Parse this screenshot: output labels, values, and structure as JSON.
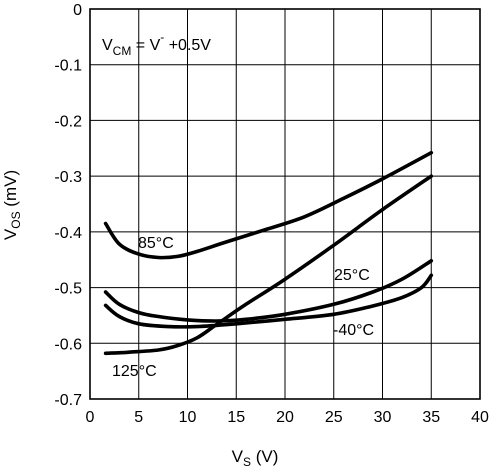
{
  "chart_data": {
    "type": "line",
    "title": "",
    "xlabel": {
      "main": "V",
      "sub": "S",
      "unit": " (V)"
    },
    "ylabel": {
      "main": "V",
      "sub": "OS",
      "unit": " (mV)"
    },
    "xlim": [
      0,
      40
    ],
    "ylim": [
      -0.7,
      0
    ],
    "xticks": [
      "0",
      "5",
      "10",
      "15",
      "20",
      "25",
      "30",
      "35",
      "40"
    ],
    "yticks": [
      "0",
      "-0.1",
      "-0.2",
      "-0.3",
      "-0.4",
      "-0.5",
      "-0.6",
      "-0.7"
    ],
    "grid": true,
    "legend": "none (curves labeled inline)",
    "annotation": {
      "main": "V",
      "sub": "CM",
      "rest": " = V",
      "sup": "-",
      "tail": " +0.5V"
    },
    "series": [
      {
        "name": "85°C",
        "x": [
          1.6,
          3,
          5,
          7,
          9,
          11,
          14,
          18,
          22,
          26,
          30,
          35
        ],
        "y": [
          -0.385,
          -0.422,
          -0.44,
          -0.446,
          -0.444,
          -0.435,
          -0.418,
          -0.396,
          -0.373,
          -0.34,
          -0.305,
          -0.258
        ]
      },
      {
        "name": "25°C",
        "x": [
          1.6,
          3,
          5,
          7,
          10,
          13,
          16,
          20,
          25,
          29,
          32,
          35
        ],
        "y": [
          -0.508,
          -0.53,
          -0.545,
          -0.552,
          -0.558,
          -0.56,
          -0.557,
          -0.548,
          -0.53,
          -0.508,
          -0.485,
          -0.452
        ]
      },
      {
        "name": "-40°C",
        "x": [
          1.6,
          3,
          5,
          8,
          11,
          15,
          20,
          25,
          29,
          32,
          34,
          35
        ],
        "y": [
          -0.532,
          -0.552,
          -0.565,
          -0.57,
          -0.57,
          -0.565,
          -0.557,
          -0.548,
          -0.533,
          -0.518,
          -0.5,
          -0.478
        ]
      },
      {
        "name": "125°C",
        "x": [
          1.6,
          4,
          7,
          9,
          11,
          13,
          16,
          20,
          25,
          30,
          35
        ],
        "y": [
          -0.618,
          -0.616,
          -0.612,
          -0.604,
          -0.59,
          -0.566,
          -0.53,
          -0.485,
          -0.424,
          -0.36,
          -0.3
        ]
      }
    ],
    "labels": [
      "85°C",
      "25°C",
      "-40°C",
      "125°C"
    ]
  }
}
